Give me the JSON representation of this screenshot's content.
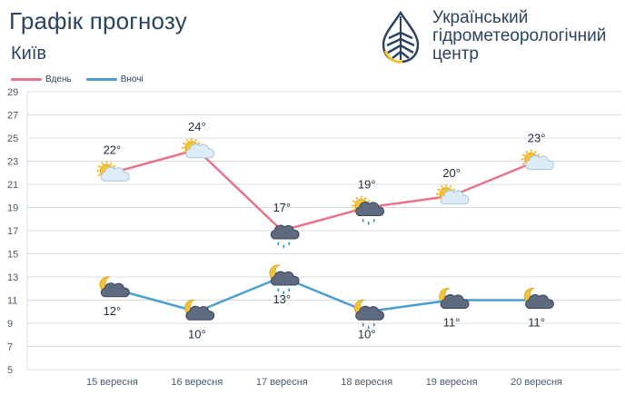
{
  "header": {
    "title": "Графік прогнозу",
    "city": "Київ"
  },
  "logo": {
    "name": "logo-drop-icon",
    "lines": [
      "Український",
      "гідрометеорологічний",
      "центр"
    ]
  },
  "colors": {
    "day": "#e8738c",
    "night": "#4a9fd0",
    "grid": "#d9dde3",
    "text": "#2b4360"
  },
  "chart_data": {
    "type": "line",
    "title": "Графік прогнозу",
    "subtitle": "Київ",
    "xlabel": "",
    "ylabel": "",
    "categories": [
      "15 вересня",
      "16 вересня",
      "17 вересня",
      "18 вересня",
      "19 вересня",
      "20 вересня"
    ],
    "ylim": [
      5,
      29
    ],
    "yticks": [
      5,
      7,
      9,
      11,
      13,
      15,
      17,
      19,
      21,
      23,
      25,
      27,
      29
    ],
    "grid": true,
    "legend": "top-left",
    "series": [
      {
        "name": "Вдень",
        "values": [
          22,
          24,
          17,
          19,
          20,
          23
        ],
        "labels": [
          "22°",
          "24°",
          "17°",
          "19°",
          "20°",
          "23°"
        ],
        "icons": [
          "sun-cloud-icon",
          "sun-cloud-icon",
          "cloud-rain-icon",
          "sun-cloud-rain-icon",
          "sun-cloud-icon",
          "sun-cloud-icon"
        ]
      },
      {
        "name": "Вночі",
        "values": [
          12,
          10,
          13,
          10,
          11,
          11
        ],
        "labels": [
          "12°",
          "10°",
          "13°",
          "10°",
          "11°",
          "11°"
        ],
        "icons": [
          "moon-cloud-icon",
          "moon-cloud-icon",
          "moon-cloud-rain-icon",
          "moon-cloud-rain-icon",
          "moon-cloud-icon",
          "moon-cloud-icon"
        ]
      }
    ]
  }
}
